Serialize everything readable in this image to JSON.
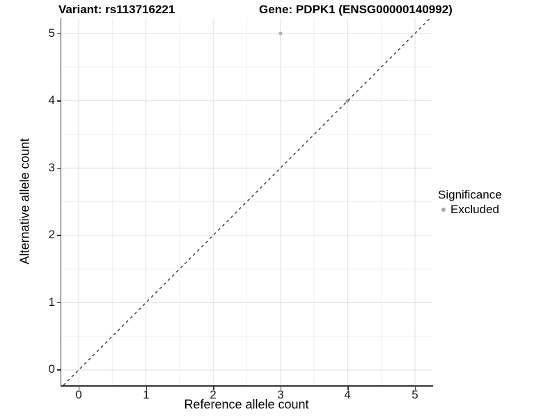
{
  "chart_data": {
    "type": "scatter",
    "titles": {
      "variant": "Variant: rs113716221",
      "gene": "Gene: PDPK1 (ENSG00000140992)"
    },
    "xlabel": "Reference allele count",
    "ylabel": "Alternative allele count",
    "x_ticks": [
      "0",
      "1",
      "2",
      "3",
      "4",
      "5"
    ],
    "y_ticks": [
      "0",
      "1",
      "2",
      "3",
      "4",
      "5"
    ],
    "xlim": [
      -0.26,
      5.26
    ],
    "ylim": [
      -0.26,
      5.26
    ],
    "grid": {
      "major_interval": 1,
      "minor_interval": 0.5,
      "major_color": "#e2e2e2",
      "minor_color": "#efefef"
    },
    "points": [
      {
        "x": 3,
        "y": 5,
        "series": "Excluded",
        "color": "#ababab"
      },
      {
        "x": 4,
        "y": 4,
        "series": "Excluded",
        "color": "#a5a5a5"
      }
    ],
    "reference_line": {
      "type": "identity y=x",
      "style": "dashed",
      "color": "#141414"
    },
    "legend": {
      "title": "Significance",
      "position": "right",
      "entries": [
        {
          "label": "Excluded",
          "color": "#a8a8a8"
        }
      ]
    },
    "axis_color": "#333333",
    "background": "#ffffff"
  }
}
